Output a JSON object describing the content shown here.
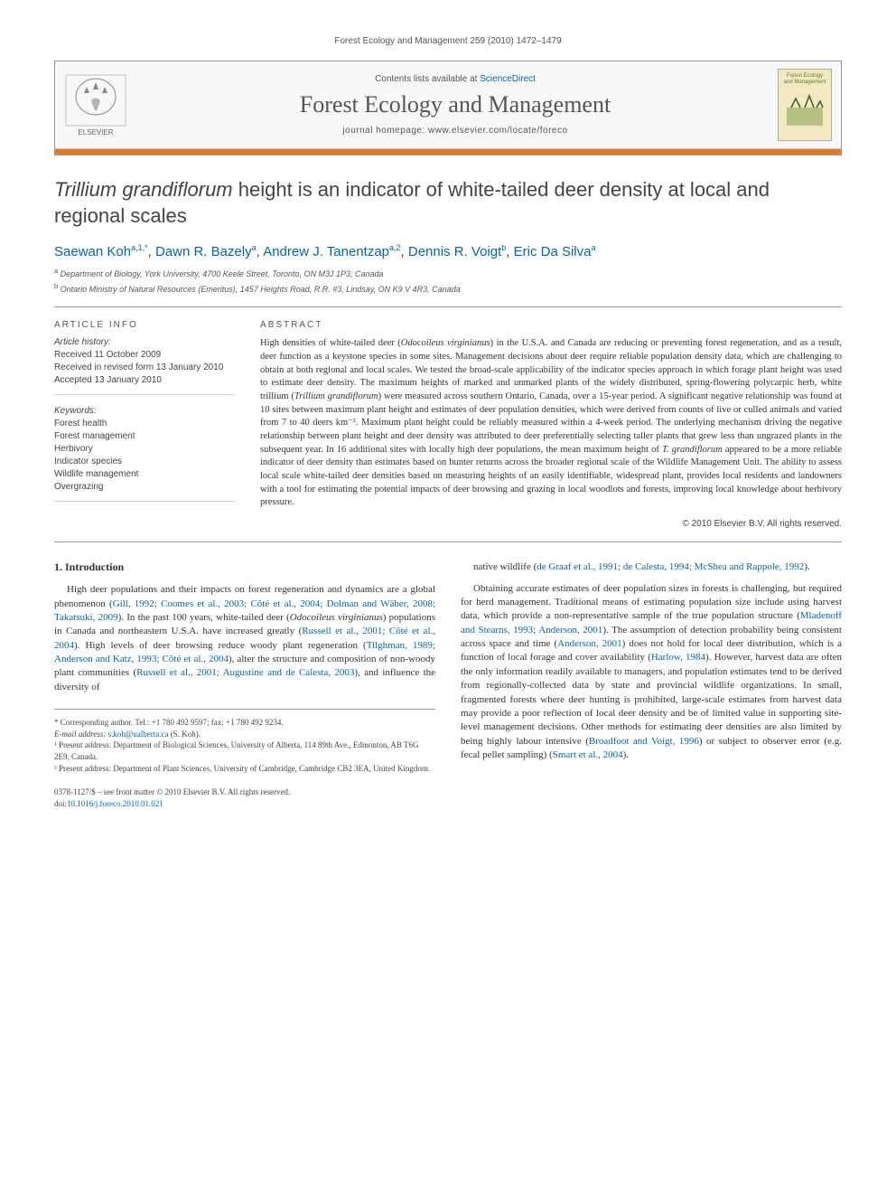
{
  "running_header": "Forest Ecology and Management 259 (2010) 1472–1479",
  "banner": {
    "contents_prefix": "Contents lists available at ",
    "contents_link": "ScienceDirect",
    "journal_name": "Forest Ecology and Management",
    "homepage_prefix": "journal homepage: ",
    "homepage_url": "www.elsevier.com/locate/foreco",
    "publisher": "ELSEVIER",
    "cover_title": "Forest Ecology and Management"
  },
  "title": {
    "italic_part": "Trillium grandiflorum",
    "rest": " height is an indicator of white-tailed deer density at local and regional scales"
  },
  "authors": [
    {
      "name": "Saewan Koh",
      "sup": "a,1,*"
    },
    {
      "name": "Dawn R. Bazely",
      "sup": "a"
    },
    {
      "name": "Andrew J. Tanentzap",
      "sup": "a,2"
    },
    {
      "name": "Dennis R. Voigt",
      "sup": "b"
    },
    {
      "name": "Eric Da Silva",
      "sup": "a"
    }
  ],
  "affiliations": [
    {
      "sup": "a",
      "text": "Department of Biology, York University, 4700 Keele Street, Toronto, ON M3J 1P3, Canada"
    },
    {
      "sup": "b",
      "text": "Ontario Ministry of Natural Resources (Emeritus), 1457 Heights Road, R.R. #3, Lindsay, ON K9 V 4R3, Canada"
    }
  ],
  "article_info": {
    "heading": "ARTICLE INFO",
    "history_label": "Article history:",
    "history": [
      "Received 11 October 2009",
      "Received in revised form 13 January 2010",
      "Accepted 13 January 2010"
    ],
    "keywords_label": "Keywords:",
    "keywords": [
      "Forest health",
      "Forest management",
      "Herbivory",
      "Indicator species",
      "Wildlife management",
      "Overgrazing"
    ]
  },
  "abstract": {
    "heading": "ABSTRACT",
    "text_parts": [
      "High densities of white-tailed deer (",
      "Odocoileus virginianus",
      ") in the U.S.A. and Canada are reducing or preventing forest regeneration, and as a result, deer function as a keystone species in some sites. Management decisions about deer require reliable population density data, which are challenging to obtain at both regional and local scales. We tested the broad-scale applicability of the indicator species approach in which forage plant height was used to estimate deer density. The maximum heights of marked and unmarked plants of the widely distributed, spring-flowering polycarpic herb, white trillium (",
      "Trillium grandiflorum",
      ") were measured across southern Ontario, Canada, over a 15-year period. A significant negative relationship was found at 10 sites between maximum plant height and estimates of deer population densities, which were derived from counts of live or culled animals and varied from 7 to 40 deers km⁻². Maximum plant height could be reliably measured within a 4-week period. The underlying mechanism driving the negative relationship between plant height and deer density was attributed to deer preferentially selecting taller plants that grew less than ungrazed plants in the subsequent year. In 16 additional sites with locally high deer populations, the mean maximum height of ",
      "T. grandiflorum",
      " appeared to be a more reliable indicator of deer density than estimates based on hunter returns across the broader regional scale of the Wildlife Management Unit. The ability to assess local scale white-tailed deer densities based on measuring heights of an easily identifiable, widespread plant, provides local residents and landowners with a tool for estimating the potential impacts of deer browsing and grazing in local woodlots and forests, improving local knowledge about herbivory pressure."
    ],
    "copyright": "© 2010 Elsevier B.V. All rights reserved."
  },
  "body": {
    "section_heading": "1. Introduction",
    "left_paras": [
      {
        "segments": [
          {
            "t": "High deer populations and their impacts on forest regeneration and dynamics are a global phenomenon ("
          },
          {
            "t": "Gill, 1992; Coomes et al., 2003; Côté et al., 2004; Dolman and Wäber, 2008; Takatsuki, 2009",
            "link": true
          },
          {
            "t": "). In the past 100 years, white-tailed deer ("
          },
          {
            "t": "Odocoileus virginianus",
            "italic": true
          },
          {
            "t": ") populations in Canada and northeastern U.S.A. have increased greatly ("
          },
          {
            "t": "Russell et al., 2001; Côté et al., 2004",
            "link": true
          },
          {
            "t": "). High levels of deer browsing reduce woody plant regeneration ("
          },
          {
            "t": "Tilghman, 1989; Anderson and Katz, 1993; Côté et al., 2004",
            "link": true
          },
          {
            "t": "), alter the structure and composition of non-woody plant communities ("
          },
          {
            "t": "Russell et al., 2001; Augustine and de Calesta, 2003",
            "link": true
          },
          {
            "t": "), and influence the diversity of"
          }
        ]
      }
    ],
    "right_paras": [
      {
        "segments": [
          {
            "t": "native wildlife ("
          },
          {
            "t": "de Graaf et al., 1991; de Calesta, 1994; McShea and Rappole, 1992",
            "link": true
          },
          {
            "t": ")."
          }
        ]
      },
      {
        "segments": [
          {
            "t": "Obtaining accurate estimates of deer population sizes in forests is challenging, but required for herd management. Traditional means of estimating population size include using harvest data, which provide a non-representative sample of the true population structure ("
          },
          {
            "t": "Mladenoff and Stearns, 1993; Anderson, 2001",
            "link": true
          },
          {
            "t": "). The assumption of detection probability being consistent across space and time ("
          },
          {
            "t": "Anderson, 2001",
            "link": true
          },
          {
            "t": ") does not hold for local deer distribution, which is a function of local forage and cover availability ("
          },
          {
            "t": "Harlow, 1984",
            "link": true
          },
          {
            "t": "). However, harvest data are often the only information readily available to managers, and population estimates tend to be derived from regionally-collected data by state and provincial wildlife organizations. In small, fragmented forests where deer hunting is prohibited, large-scale estimates from harvest data may provide a poor reflection of local deer density and be of limited value in supporting site-level management decisions. Other methods for estimating deer densities are also limited by being highly labour intensive ("
          },
          {
            "t": "Broadfoot and Voigt, 1996",
            "link": true
          },
          {
            "t": ") or subject to observer error (e.g. fecal pellet sampling) ("
          },
          {
            "t": "Smart et al., 2004",
            "link": true
          },
          {
            "t": ")."
          }
        ]
      }
    ]
  },
  "footnotes": {
    "corresponding": "* Corresponding author. Tel.: +1 780 492 9597; fax: +1 780 492 9234.",
    "email_label": "E-mail address: ",
    "email": "s.koh@ualberta.ca",
    "email_name": " (S. Koh).",
    "present1": "¹ Present address: Department of Biological Sciences, University of Alberta, 114 89th Ave., Edmonton, AB T6G 2E9, Canada.",
    "present2": "² Present address: Department of Plant Sciences, University of Cambridge, Cambridge CB2 3EA, United Kingdom."
  },
  "footer": {
    "line1": "0378-1127/$ – see front matter © 2010 Elsevier B.V. All rights reserved.",
    "doi_prefix": "doi:",
    "doi": "10.1016/j.foreco.2010.01.021"
  },
  "colors": {
    "link": "#0066b3",
    "orange_bar": "#e87722",
    "rule": "#999999",
    "text": "#333333",
    "muted": "#555555"
  }
}
